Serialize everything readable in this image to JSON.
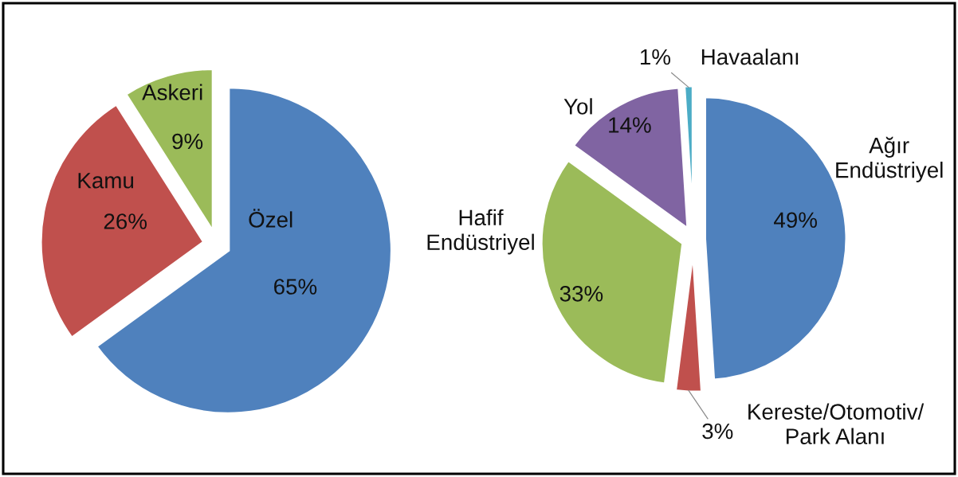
{
  "chart_data": [
    {
      "type": "pie",
      "categories": [
        "Özel",
        "Kamu",
        "Askeri"
      ],
      "values": [
        65,
        26,
        9
      ],
      "colors": [
        "#4f81bd",
        "#c0504d",
        "#9bbb59"
      ],
      "value_labels": [
        "65%",
        "26%",
        "9%"
      ]
    },
    {
      "type": "pie",
      "categories": [
        "Ağır\nEndüstriyel",
        "Kereste/Otomotiv/\nPark Alanı",
        "Hafif\nEndüstriyel",
        "Yol",
        "Havaalanı"
      ],
      "values": [
        49,
        3,
        33,
        14,
        1
      ],
      "colors": [
        "#4f81bd",
        "#c0504d",
        "#9bbb59",
        "#8064a2",
        "#4bacc6"
      ],
      "value_labels": [
        "49%",
        "3%",
        "33%",
        "14%",
        "1%"
      ]
    }
  ]
}
